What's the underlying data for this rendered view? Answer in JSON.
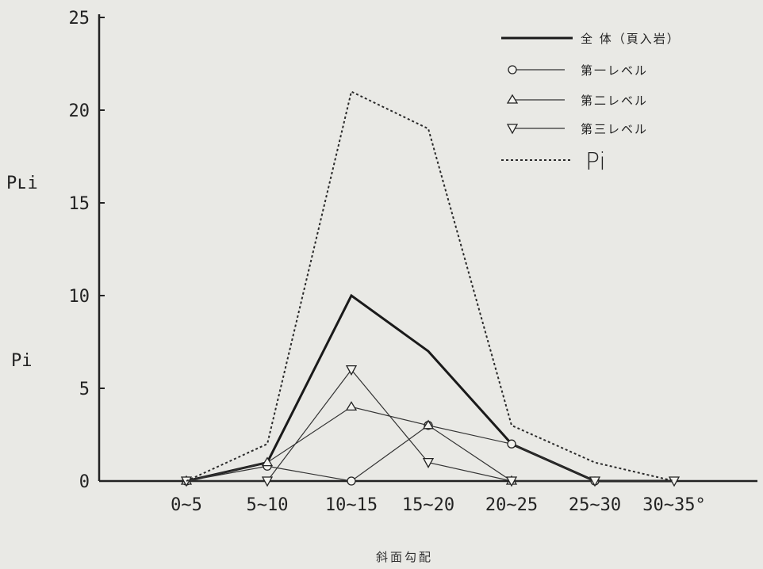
{
  "chart_data": {
    "type": "line",
    "xlabel": "斜面勾配",
    "ylabels": [
      "Pʟi",
      "Pi"
    ],
    "ylim": [
      0,
      25
    ],
    "yticks": [
      0,
      5,
      10,
      15,
      20,
      25
    ],
    "categories": [
      "0~5",
      "5~10",
      "10~15",
      "15~20",
      "20~25",
      "25~30",
      "30~35°"
    ],
    "legend_position": "top-right",
    "series": [
      {
        "name": "全 体（頁入岩）",
        "style": "solid-bold",
        "marker": "none",
        "values": [
          0,
          1,
          10,
          7,
          2,
          0,
          0
        ]
      },
      {
        "name": "第一レベル",
        "style": "solid-thin",
        "marker": "circle",
        "values": [
          0,
          0.8,
          0,
          3,
          2,
          0,
          null
        ]
      },
      {
        "name": "第二レベル",
        "style": "solid-thin",
        "marker": "triangle-up",
        "values": [
          0,
          1,
          4,
          3,
          0,
          null,
          null
        ]
      },
      {
        "name": "第三レベル",
        "style": "solid-thin",
        "marker": "triangle-down",
        "values": [
          0,
          0,
          6,
          1,
          0,
          0,
          0
        ]
      },
      {
        "name": "Pi",
        "style": "dotted",
        "marker": "none",
        "values": [
          0,
          2,
          21,
          19,
          3,
          1,
          0
        ]
      }
    ]
  }
}
